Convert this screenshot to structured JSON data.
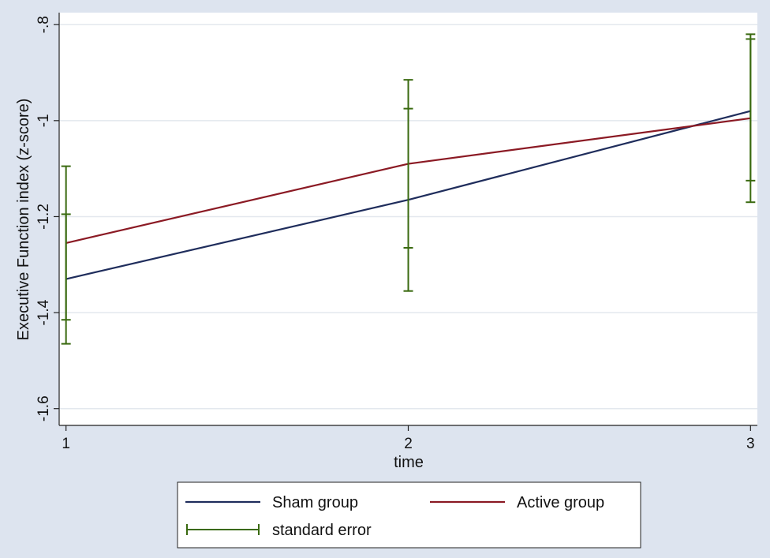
{
  "chart_data": {
    "type": "line",
    "xlabel": "time",
    "ylabel": "Executive Function index  (z-score)",
    "x": [
      1,
      2,
      3
    ],
    "xticks": [
      "1",
      "2",
      "3"
    ],
    "yticks": [
      -1.6,
      -1.4,
      -1.2,
      -1,
      -0.8
    ],
    "ytick_labels": [
      "-1.6",
      "-1.4",
      "-1.2",
      "-1",
      "-.8"
    ],
    "xlim": [
      0.98,
      3.02
    ],
    "ylim": [
      -1.635,
      -0.775
    ],
    "grid": true,
    "series": [
      {
        "name": "Sham group",
        "color": "#1f2d5c",
        "values": [
          -1.33,
          -1.165,
          -0.98
        ],
        "se_low": [
          -1.465,
          -1.355,
          -1.17
        ],
        "se_high": [
          -1.195,
          -0.975,
          -0.82
        ]
      },
      {
        "name": "Active group",
        "color": "#8b1a24",
        "values": [
          -1.255,
          -1.09,
          -0.995
        ],
        "se_low": [
          -1.415,
          -1.265,
          -1.125
        ],
        "se_high": [
          -1.095,
          -0.915,
          -0.83
        ]
      }
    ],
    "error_bar_color": "#3a6a10",
    "legend": {
      "placement": "bottom",
      "entries": [
        "Sham group",
        "Active group",
        "standard error"
      ]
    }
  }
}
